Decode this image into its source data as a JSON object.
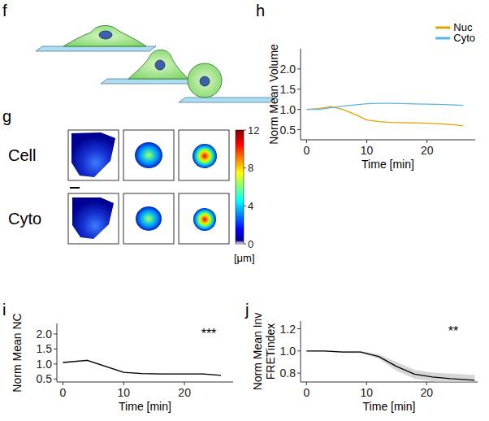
{
  "figure": {
    "panel_f": {
      "letter": "f"
    },
    "panel_g": {
      "letter": "g",
      "rows": [
        "Cell",
        "Cyto"
      ],
      "colorbar": {
        "range": [
          0,
          12
        ],
        "ticks": [
          0,
          4,
          8,
          12
        ],
        "label": "[μm]"
      }
    }
  },
  "chart_data": [
    {
      "panel": "h",
      "type": "line",
      "y_label": [
        "Norm Mean Volume"
      ],
      "x_label": "Time [min]",
      "x": [
        0,
        2,
        4,
        6,
        8,
        10,
        12,
        14,
        17,
        20,
        23,
        26
      ],
      "series": [
        {
          "name": "Nuc",
          "color": "#e69f00",
          "values": [
            1.0,
            1.02,
            1.07,
            1.0,
            0.88,
            0.74,
            0.7,
            0.68,
            0.67,
            0.66,
            0.64,
            0.6
          ]
        },
        {
          "name": "Cyto",
          "color": "#56b4e9",
          "values": [
            1.0,
            1.0,
            1.04,
            1.08,
            1.11,
            1.14,
            1.15,
            1.15,
            1.14,
            1.13,
            1.12,
            1.1
          ]
        }
      ],
      "xlim": [
        -1,
        28
      ],
      "xticks": [
        0,
        10,
        20
      ],
      "ylim": [
        0.25,
        2.5
      ],
      "yticks": [
        0.5,
        {
          "value": 1,
          "label": "1.0"
        },
        1.5,
        {
          "value": 2,
          "label": "2.0"
        }
      ],
      "legend": "top-right"
    },
    {
      "panel": "i",
      "type": "line",
      "y_label": [
        "Norm Mean NC"
      ],
      "x_label": "Time [min]",
      "x": [
        0,
        4,
        10,
        13,
        16,
        20,
        23,
        26
      ],
      "series": [
        {
          "color": "#000000",
          "values": [
            1.05,
            1.12,
            0.72,
            0.68,
            0.67,
            0.67,
            0.67,
            0.62
          ],
          "errors": [
            0.02,
            0.03,
            0.02,
            0.02,
            0.02,
            0.02,
            0.02,
            0.02
          ]
        }
      ],
      "xlim": [
        -1,
        28
      ],
      "xticks": [
        0,
        10,
        20
      ],
      "ylim": [
        0.4,
        2.35
      ],
      "yticks": [
        0.5,
        {
          "value": 1,
          "label": "1.0"
        },
        1.5,
        {
          "value": 2,
          "label": "2.0"
        }
      ],
      "annotations": [
        "***"
      ]
    },
    {
      "panel": "j",
      "type": "line",
      "y_label": [
        "Norm Mean Inv",
        "FRETindex"
      ],
      "x_label": "Time [min]",
      "x": [
        0,
        3,
        6,
        9,
        12,
        15,
        18,
        21,
        24,
        28
      ],
      "series": [
        {
          "color": "#000000",
          "values": [
            1.0,
            1.0,
            0.99,
            0.99,
            0.95,
            0.86,
            0.79,
            0.765,
            0.75,
            0.735
          ],
          "errors": [
            0.003,
            0.005,
            0.008,
            0.01,
            0.02,
            0.04,
            0.04,
            0.04,
            0.045,
            0.05
          ]
        }
      ],
      "xlim": [
        -1,
        28.5
      ],
      "xticks": [
        0,
        10,
        20
      ],
      "ylim": [
        0.72,
        1.27
      ],
      "yticks": [
        0.8,
        {
          "value": 1,
          "label": "1.0"
        },
        1.2
      ],
      "annotations": [
        "**"
      ]
    }
  ]
}
